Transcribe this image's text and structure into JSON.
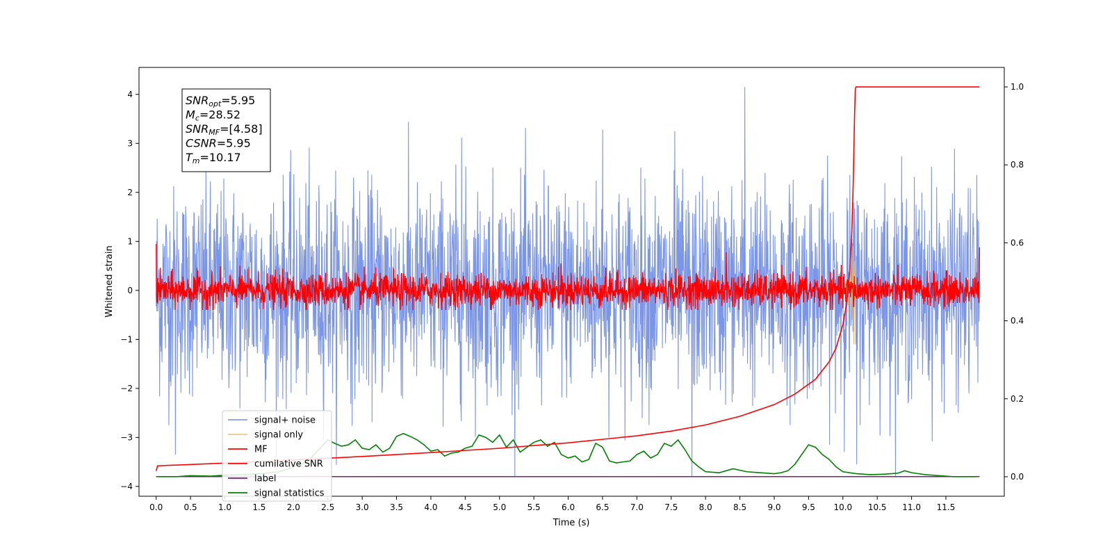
{
  "chart_data": {
    "type": "line",
    "xlabel": "Time (s)",
    "ylabel": "Whitened strain",
    "xlim": [
      -0.25,
      12.35
    ],
    "ylim": [
      -4.2,
      4.55
    ],
    "y2lim": [
      -0.05,
      1.05
    ],
    "x_ticks": [
      "0.0",
      "0.5",
      "1.0",
      "1.5",
      "2.0",
      "2.5",
      "3.0",
      "3.5",
      "4.0",
      "4.5",
      "5.0",
      "5.5",
      "6.0",
      "6.5",
      "7.0",
      "7.5",
      "8.0",
      "8.5",
      "9.0",
      "9.5",
      "10.0",
      "10.5",
      "11.0",
      "11.5"
    ],
    "y_ticks": [
      "4",
      "3",
      "2",
      "1",
      "0",
      "−1",
      "−2",
      "−3",
      "−4"
    ],
    "y2_ticks": [
      "1.0",
      "0.8",
      "0.6",
      "0.4",
      "0.2",
      "0.0"
    ],
    "colors": {
      "signal_noise": "#7b96e8",
      "signal_only": "#e8b86c",
      "mf": "#ff0000",
      "cumulative_snr": "#ff0000",
      "label": "#7b1f7b",
      "signal_statistics": "#008000"
    },
    "legend": {
      "position": "lower-left",
      "entries": [
        "signal+ noise",
        "signal only",
        "MF",
        "cumilative SNR",
        "label",
        "signal statistics"
      ]
    },
    "annotation": {
      "lines": [
        {
          "sym": "SNR",
          "sub": "opt",
          "val": "=5.95"
        },
        {
          "sym": "M",
          "sub": "c",
          "val": "=28.52"
        },
        {
          "sym": "SNR",
          "sub": "MF",
          "val": "=[4.58]"
        },
        {
          "sym": "CSNR",
          "sub": "",
          "val": "=5.95"
        },
        {
          "sym": "T",
          "sub": "m",
          "val": "=10.17"
        }
      ]
    },
    "series": [
      {
        "name": "cumilative SNR",
        "axis": "right",
        "x": [
          0.0,
          0.02,
          1.0,
          2.0,
          3.0,
          4.0,
          5.0,
          6.0,
          7.0,
          7.5,
          8.0,
          8.5,
          9.0,
          9.3,
          9.6,
          9.8,
          9.9,
          10.0,
          10.05,
          10.1,
          10.13,
          10.15,
          10.17,
          10.18,
          10.19,
          11.0,
          11.5,
          11.99
        ],
        "values": [
          0.015,
          0.028,
          0.035,
          0.043,
          0.052,
          0.062,
          0.073,
          0.087,
          0.105,
          0.117,
          0.133,
          0.155,
          0.185,
          0.212,
          0.25,
          0.295,
          0.33,
          0.39,
          0.44,
          0.53,
          0.63,
          0.75,
          0.93,
          0.99,
          1.0,
          1.0,
          1.0,
          1.0
        ]
      },
      {
        "name": "signal statistics",
        "axis": "left",
        "x": [
          0.0,
          0.3,
          0.5,
          0.8,
          1.0,
          1.3,
          1.5,
          1.8,
          2.0,
          2.1,
          2.2,
          2.3,
          2.4,
          2.5,
          2.6,
          2.7,
          2.8,
          2.9,
          3.0,
          3.1,
          3.2,
          3.3,
          3.4,
          3.5,
          3.6,
          3.7,
          3.8,
          3.9,
          4.0,
          4.1,
          4.2,
          4.3,
          4.4,
          4.5,
          4.6,
          4.7,
          4.8,
          4.9,
          5.0,
          5.1,
          5.2,
          5.3,
          5.4,
          5.5,
          5.6,
          5.7,
          5.8,
          5.9,
          6.0,
          6.1,
          6.2,
          6.3,
          6.4,
          6.5,
          6.6,
          6.7,
          6.8,
          6.9,
          7.0,
          7.1,
          7.2,
          7.3,
          7.4,
          7.5,
          7.6,
          7.7,
          7.8,
          7.9,
          8.0,
          8.2,
          8.4,
          8.6,
          8.8,
          9.0,
          9.1,
          9.2,
          9.3,
          9.4,
          9.5,
          9.6,
          9.7,
          9.8,
          9.9,
          10.0,
          10.2,
          10.4,
          10.6,
          10.8,
          10.9,
          11.0,
          11.2,
          11.4,
          11.6,
          11.8,
          11.95
        ],
        "values": [
          -3.8,
          -3.8,
          -3.78,
          -3.79,
          -3.77,
          -3.76,
          -3.74,
          -3.7,
          -3.6,
          -3.55,
          -3.5,
          -3.35,
          -3.2,
          -3.05,
          -3.12,
          -3.18,
          -3.15,
          -3.05,
          -3.22,
          -3.25,
          -3.15,
          -3.3,
          -3.22,
          -2.98,
          -2.92,
          -2.98,
          -3.05,
          -3.15,
          -3.28,
          -3.25,
          -3.38,
          -3.32,
          -3.3,
          -3.22,
          -3.18,
          -2.95,
          -3.0,
          -3.1,
          -2.95,
          -3.2,
          -3.05,
          -3.3,
          -3.2,
          -3.1,
          -3.05,
          -3.18,
          -3.1,
          -3.35,
          -3.42,
          -3.38,
          -3.5,
          -3.45,
          -3.12,
          -3.2,
          -3.48,
          -3.52,
          -3.5,
          -3.48,
          -3.35,
          -3.28,
          -3.42,
          -3.35,
          -3.12,
          -3.18,
          -3.05,
          -3.25,
          -3.48,
          -3.6,
          -3.7,
          -3.72,
          -3.64,
          -3.7,
          -3.72,
          -3.74,
          -3.72,
          -3.68,
          -3.55,
          -3.35,
          -3.15,
          -3.2,
          -3.35,
          -3.45,
          -3.6,
          -3.7,
          -3.74,
          -3.76,
          -3.75,
          -3.73,
          -3.68,
          -3.72,
          -3.76,
          -3.78,
          -3.8,
          -3.8,
          -3.8
        ]
      },
      {
        "name": "label",
        "axis": "left",
        "x": [
          0.0,
          11.99
        ],
        "values": [
          -3.8,
          -3.8
        ]
      },
      {
        "name": "signal only",
        "axis": "left",
        "x": [
          9.85,
          9.95,
          10.0,
          10.05,
          10.08,
          10.11,
          10.13,
          10.15,
          10.16,
          10.17,
          10.18,
          10.2,
          10.25
        ],
        "values": [
          0.0,
          0.1,
          -0.15,
          0.2,
          -0.3,
          0.45,
          -0.6,
          0.9,
          -1.1,
          0.6,
          -0.2,
          0.05,
          0.0
        ]
      },
      {
        "name": "signal+ noise",
        "axis": "left",
        "x_range": [
          0.0,
          11.99
        ],
        "amplitude_range": [
          -3.8,
          4.15
        ],
        "peaks": [
          {
            "x": 8.57,
            "y": 4.15
          },
          {
            "x": 7.8,
            "y": -3.8
          },
          {
            "x": 6.5,
            "y": 3.28
          },
          {
            "x": 7.55,
            "y": 3.25
          },
          {
            "x": 4.45,
            "y": 3.12
          },
          {
            "x": 10.2,
            "y": -3.55
          },
          {
            "x": 0.28,
            "y": -3.35
          }
        ]
      },
      {
        "name": "MF",
        "axis": "left",
        "x_range": [
          0.0,
          11.99
        ],
        "amplitude_range": [
          -0.4,
          0.95
        ],
        "peaks": [
          {
            "x": 0.0,
            "y": 0.95
          },
          {
            "x": 11.99,
            "y": 0.88
          },
          {
            "x": 8.3,
            "y": 0.78
          },
          {
            "x": 5.9,
            "y": 0.55
          }
        ]
      }
    ]
  }
}
